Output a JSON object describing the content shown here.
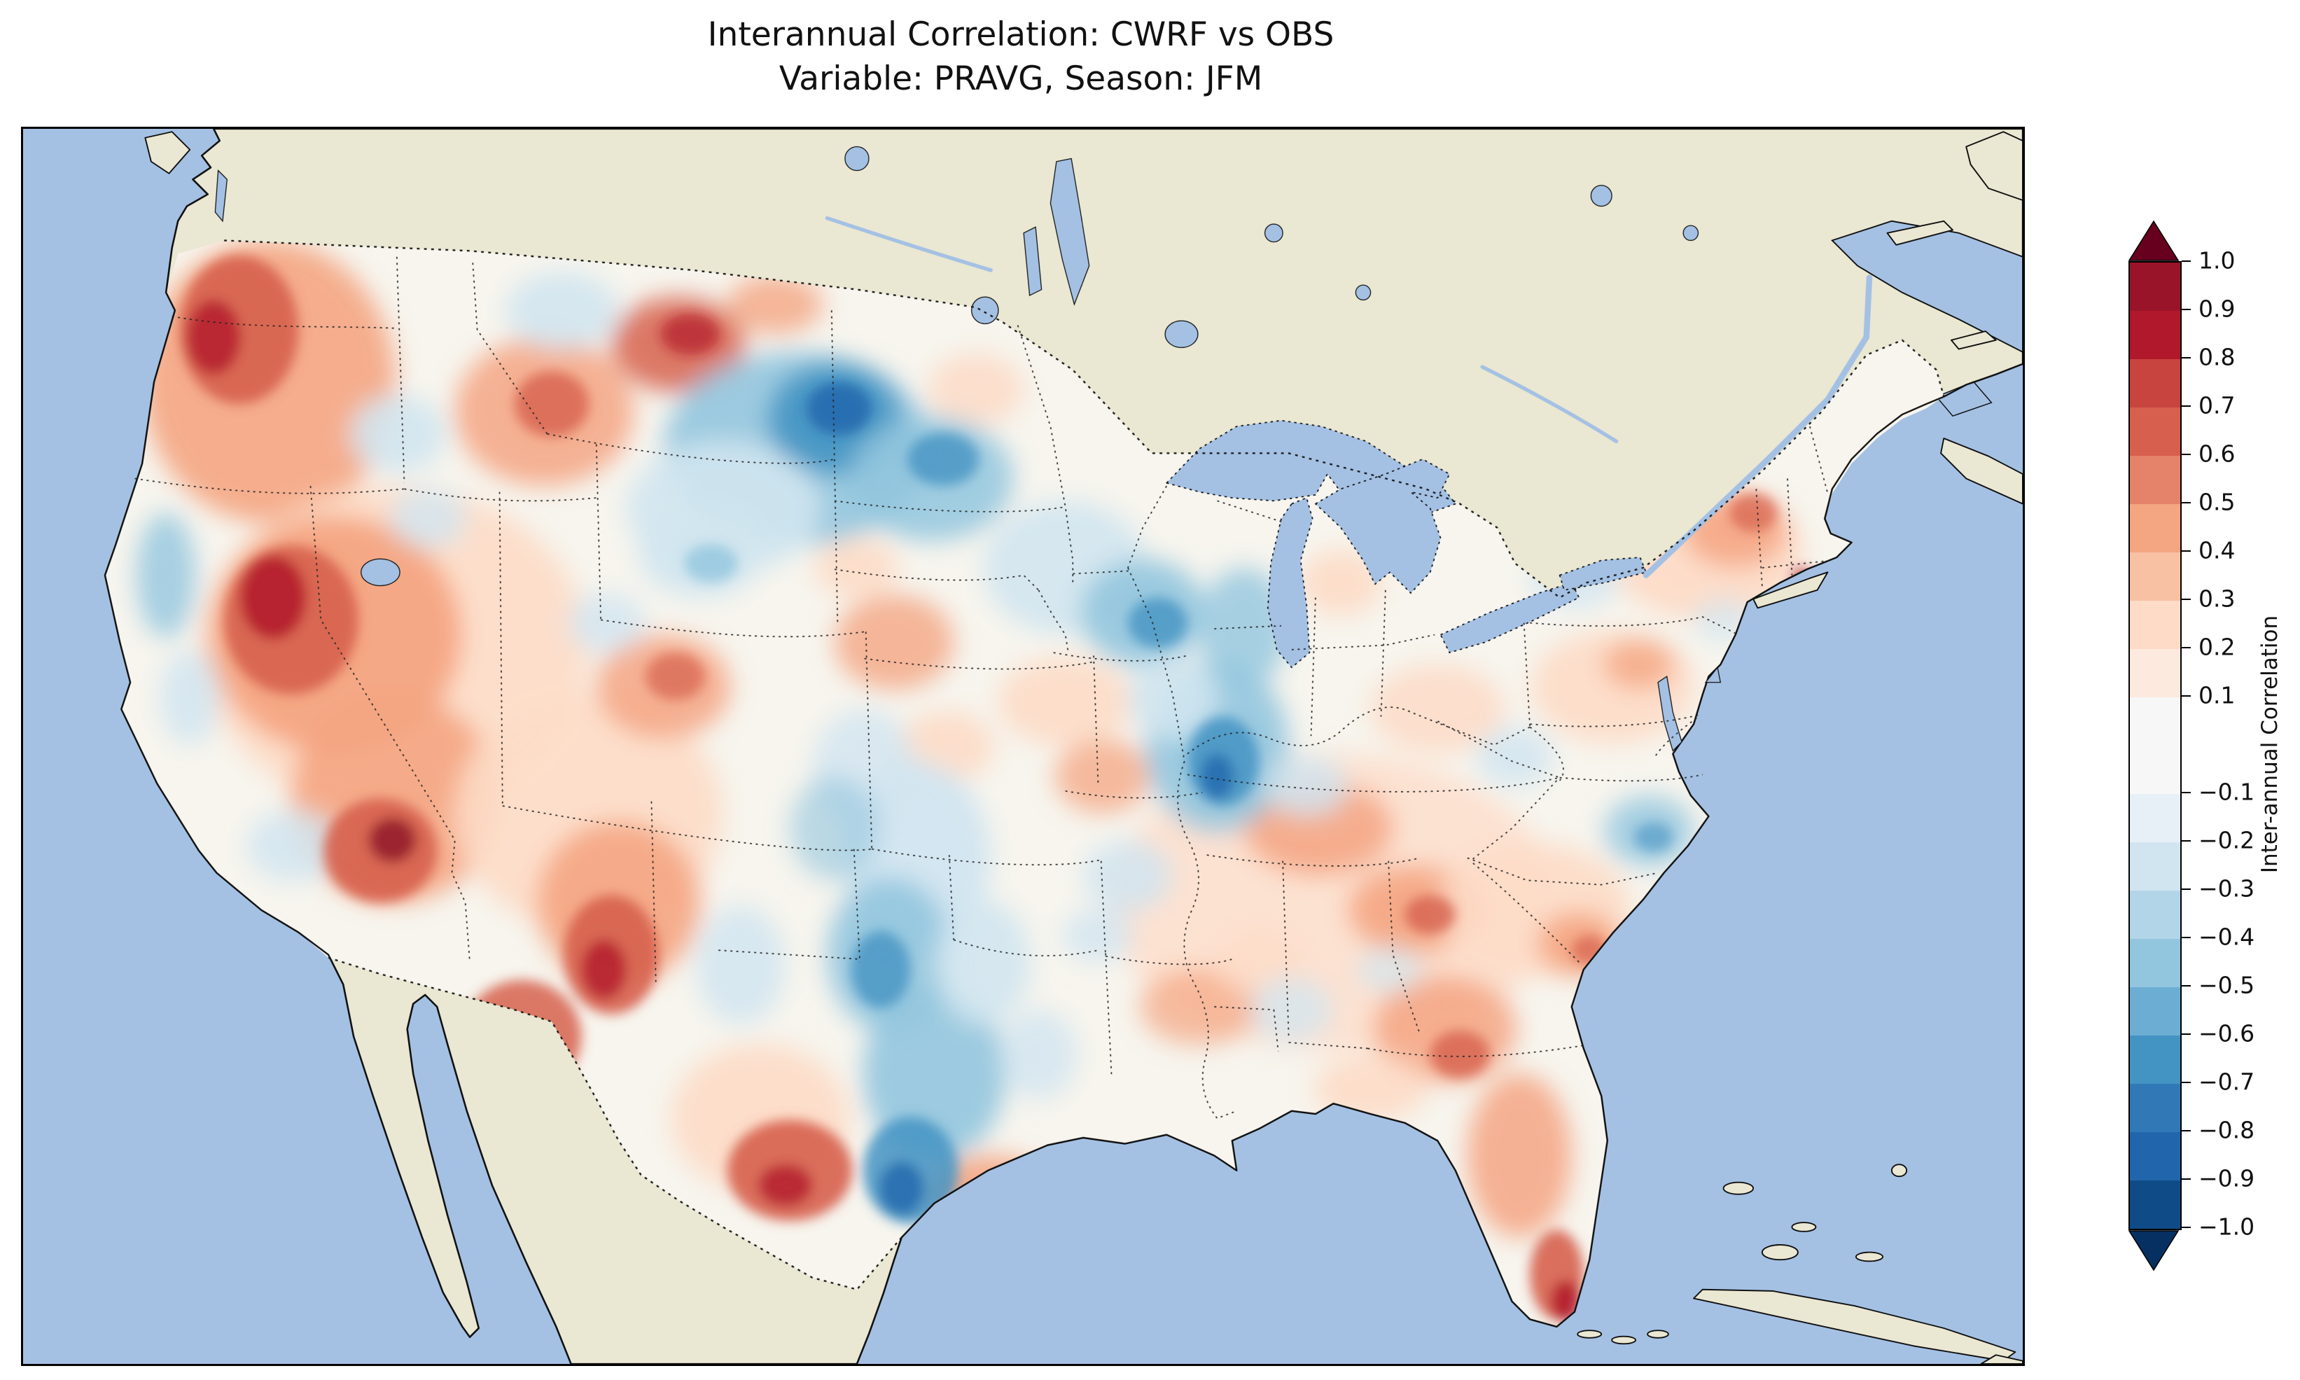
{
  "title": {
    "line1": "Interannual Correlation: CWRF vs OBS",
    "line2": "Variable: PRAVG, Season: JFM"
  },
  "colorbar": {
    "label": "Inter-annual Correlation",
    "ticks": [
      "1.0",
      "0.9",
      "0.8",
      "0.7",
      "0.6",
      "0.5",
      "0.4",
      "0.3",
      "0.2",
      "0.1",
      "−0.1",
      "−0.2",
      "−0.3",
      "−0.4",
      "−0.5",
      "−0.6",
      "−0.7",
      "−0.8",
      "−0.9",
      "−1.0"
    ],
    "band_colors": [
      "#9a1429",
      "#b2182b",
      "#c8443f",
      "#d6604d",
      "#e5826a",
      "#f4a582",
      "#f8c1a4",
      "#fddbc7",
      "#fceade",
      "#f7f7f7",
      "#e6f0f6",
      "#d1e5f0",
      "#b3d5e8",
      "#92c5de",
      "#6caed3",
      "#4393c3",
      "#3079b6",
      "#2166ac",
      "#0f4c87"
    ],
    "over_color": "#67001f",
    "under_color": "#053061"
  },
  "map": {
    "ocean_color": "#a4c1e4",
    "land_color": "#eae7d2",
    "field_background": "#f7f5ee",
    "border_color": "#1a1a1a"
  },
  "chart_data": {
    "type": "heatmap",
    "title": "Interannual Correlation: CWRF vs OBS",
    "subtitle": "Variable: PRAVG, Season: JFM",
    "comparison": [
      "CWRF",
      "OBS"
    ],
    "variable": "PRAVG",
    "season": "JFM",
    "colorbar_label": "Inter-annual Correlation",
    "colormap": "RdBu_r (red = positive correlation, blue = negative correlation)",
    "levels": [
      -1.0,
      -0.9,
      -0.8,
      -0.7,
      -0.6,
      -0.5,
      -0.4,
      -0.3,
      -0.2,
      -0.1,
      0.1,
      0.2,
      0.3,
      0.4,
      0.5,
      0.6,
      0.7,
      0.8,
      0.9,
      1.0
    ],
    "value_range": [
      -1.0,
      1.0
    ],
    "extent": "Contiguous United States; surrounding Canada and Mexico shown as unshaded land",
    "legend_position": "right vertical colorbar with over/under arrow extensions",
    "regions": [
      {
        "region": "Pacific Northwest coast (WA/OR)",
        "value": 0.6
      },
      {
        "region": "Northern Rockies (ID/MT border)",
        "value": 0.5
      },
      {
        "region": "Great Basin (Nevada/Utah)",
        "value": 0.7
      },
      {
        "region": "Southern Nevada / NW Arizona",
        "value": 0.8
      },
      {
        "region": "Four Corners / N New Mexico",
        "value": 0.7
      },
      {
        "region": "Colorado Rockies",
        "value": 0.5
      },
      {
        "region": "West Texas",
        "value": 0.6
      },
      {
        "region": "Texas Gulf Coast",
        "value": 0.5
      },
      {
        "region": "Central Montana",
        "value": -0.2
      },
      {
        "region": "Northern Plains (MT/ND/SD)",
        "value": -0.6
      },
      {
        "region": "Minnesota / Wisconsin",
        "value": -0.5
      },
      {
        "region": "Wyoming interior",
        "value": -0.3
      },
      {
        "region": "Central Kansas-Oklahoma corridor",
        "value": -0.4
      },
      {
        "region": "South-central Texas",
        "value": -0.6
      },
      {
        "region": "Illinois / lower Midwest",
        "value": -0.5
      },
      {
        "region": "Iowa / Missouri patches",
        "value": 0.3
      },
      {
        "region": "Tennessee / Kentucky valley",
        "value": 0.4
      },
      {
        "region": "Georgia / Carolinas",
        "value": 0.4
      },
      {
        "region": "Coastal North Carolina",
        "value": -0.3
      },
      {
        "region": "Florida peninsula",
        "value": 0.5
      },
      {
        "region": "South Florida tip",
        "value": 0.8
      },
      {
        "region": "Appalachians / West Virginia",
        "value": -0.2
      },
      {
        "region": "Pennsylvania / New England",
        "value": 0.4
      },
      {
        "region": "Northern California coast",
        "value": -0.3
      },
      {
        "region": "Southern California",
        "value": -0.2
      }
    ]
  }
}
